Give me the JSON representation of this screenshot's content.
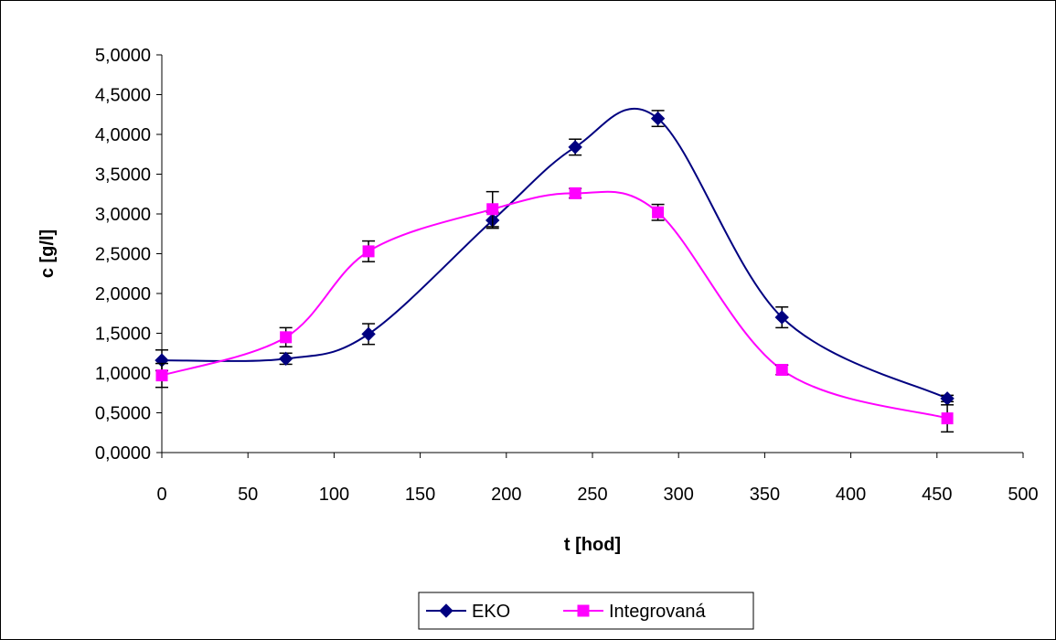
{
  "chart_data": {
    "type": "line",
    "title": "",
    "xlabel": "t [hod]",
    "ylabel": "c [g/l]",
    "xlim": [
      0,
      500
    ],
    "ylim": [
      0,
      5
    ],
    "x_ticks": [
      "0",
      "50",
      "100",
      "150",
      "200",
      "250",
      "300",
      "350",
      "400",
      "450",
      "500"
    ],
    "y_ticks": [
      "0,0000",
      "0,5000",
      "1,0000",
      "1,5000",
      "2,0000",
      "2,5000",
      "3,0000",
      "3,5000",
      "4,0000",
      "4,5000",
      "5,0000"
    ],
    "grid": false,
    "legend_position": "bottom",
    "smoothed": true,
    "series": [
      {
        "name": "EKO",
        "color": "#000080",
        "marker": "diamond",
        "x": [
          0,
          72,
          120,
          192,
          240,
          288,
          360,
          456
        ],
        "y": [
          1.16,
          1.18,
          1.49,
          2.92,
          3.84,
          4.2,
          1.7,
          0.68
        ],
        "err": [
          0.13,
          0.07,
          0.13,
          0.1,
          0.1,
          0.1,
          0.13,
          0.04
        ]
      },
      {
        "name": "Integrovaná",
        "color": "#FF00FF",
        "marker": "square",
        "x": [
          0,
          72,
          120,
          192,
          240,
          288,
          360,
          456
        ],
        "y": [
          0.97,
          1.45,
          2.53,
          3.06,
          3.26,
          3.02,
          1.04,
          0.43
        ],
        "err": [
          0.15,
          0.12,
          0.13,
          0.22,
          0.06,
          0.1,
          0.06,
          0.17
        ]
      }
    ]
  }
}
